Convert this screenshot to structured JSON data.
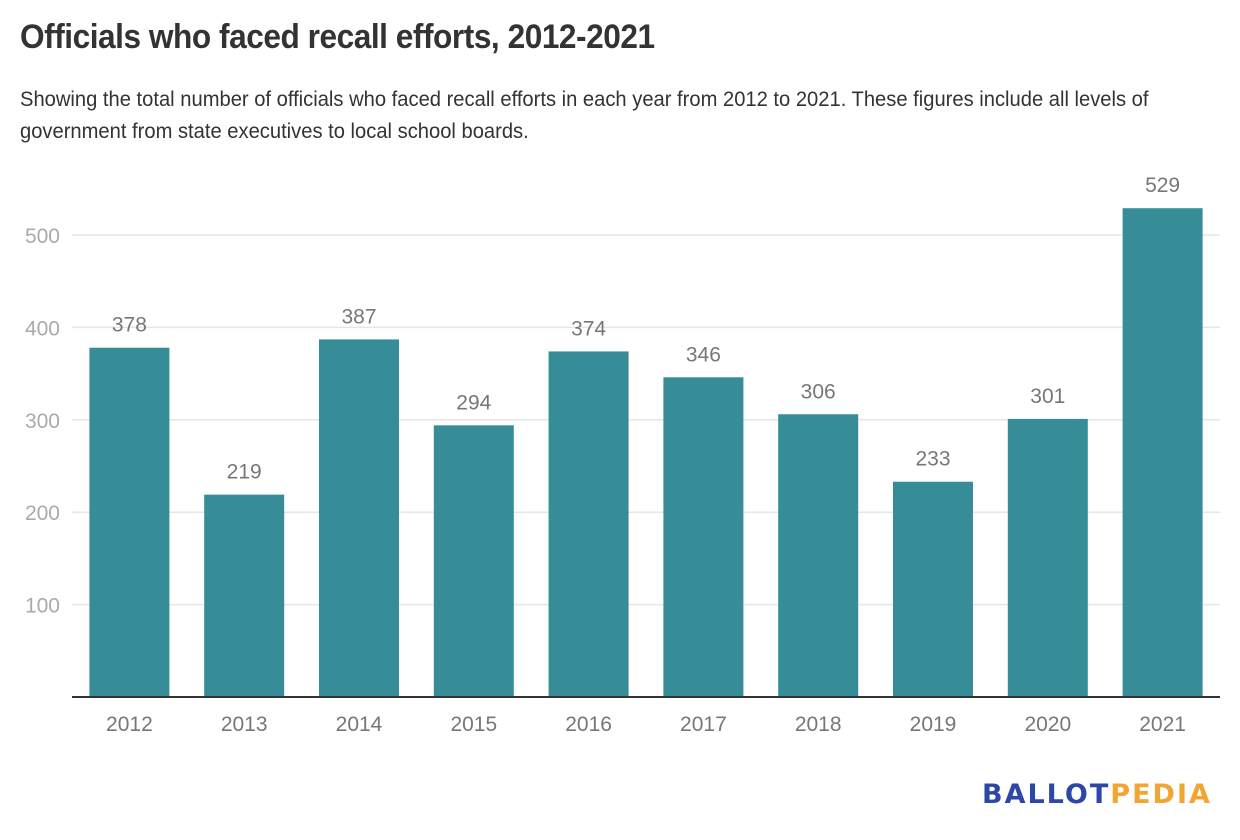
{
  "chart_data": {
    "type": "bar",
    "title": "Officials who faced recall efforts, 2012-2021",
    "subtitle": "Showing the total number of officials who faced recall efforts in each year from 2012 to 2021. These figures include all levels of government from state executives to local school boards.",
    "categories": [
      "2012",
      "2013",
      "2014",
      "2015",
      "2016",
      "2017",
      "2018",
      "2019",
      "2020",
      "2021"
    ],
    "values": [
      378,
      219,
      387,
      294,
      374,
      346,
      306,
      233,
      301,
      529
    ],
    "data_labels": [
      "378",
      "219",
      "387",
      "294",
      "374",
      "346",
      "306",
      "233",
      "301",
      "529"
    ],
    "xlabel": "",
    "ylabel": "",
    "ylim": [
      0,
      540
    ],
    "yticks": [
      100,
      200,
      300,
      400,
      500
    ],
    "ytick_labels": [
      "100",
      "200",
      "300",
      "400",
      "500"
    ],
    "grid": true,
    "legend": "none",
    "bar_color": "#368d97"
  },
  "branding": {
    "logo_part1": "BALLOT",
    "logo_part2": "PEDIA"
  }
}
